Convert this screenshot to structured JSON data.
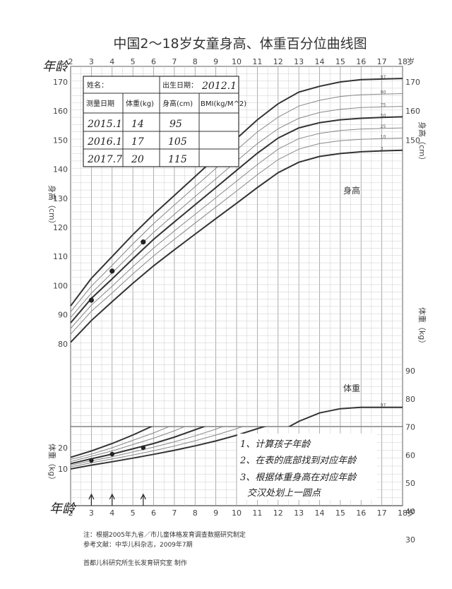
{
  "chart_data": {
    "type": "line",
    "title": "中国2～18岁女童身高、体重百分位曲线图",
    "xlim": [
      2,
      18
    ],
    "x_ticks": [
      "2",
      "3",
      "4",
      "5",
      "6",
      "7",
      "8",
      "9",
      "10",
      "11",
      "12",
      "13",
      "14",
      "15",
      "16",
      "17",
      "18"
    ],
    "x_unit": "岁",
    "height_axis": {
      "label": "身高（cm）",
      "ylim": [
        75,
        180
      ],
      "ticks": [
        80,
        90,
        100,
        110,
        120,
        130,
        140,
        150,
        160,
        170
      ]
    },
    "weight_axis": {
      "label": "体重（kg）",
      "ylim": [
        5,
        100
      ],
      "ticks": [
        10,
        20,
        30,
        40,
        50,
        60,
        70,
        80,
        90
      ],
      "lower_ticks": [
        10,
        20
      ]
    },
    "height_series": [
      {
        "name": "97",
        "x": [
          2,
          3,
          4,
          5,
          6,
          7,
          8,
          9,
          10,
          11,
          12,
          13,
          14,
          15,
          16,
          17,
          18
        ],
        "values": [
          93,
          102.5,
          110,
          117.5,
          124.5,
          131,
          137.5,
          144,
          150.5,
          157,
          162.5,
          166.5,
          168.5,
          170,
          170.8,
          171,
          171.2
        ]
      },
      {
        "name": "90",
        "x": [
          2,
          3,
          4,
          5,
          6,
          7,
          8,
          9,
          10,
          11,
          12,
          13,
          14,
          15,
          16,
          17,
          18
        ],
        "values": [
          91,
          99.8,
          107,
          114.3,
          121.3,
          127.7,
          134,
          140.3,
          146.6,
          152.8,
          157.9,
          161.7,
          163.7,
          165,
          165.6,
          165.8,
          166
        ]
      },
      {
        "name": "75",
        "x": [
          2,
          3,
          4,
          5,
          6,
          7,
          8,
          9,
          10,
          11,
          12,
          13,
          14,
          15,
          16,
          17,
          18
        ],
        "values": [
          89,
          97.4,
          104.4,
          111.4,
          118.3,
          124.5,
          130.6,
          136.7,
          142.8,
          148.8,
          153.9,
          157.5,
          159.5,
          160.6,
          161.2,
          161.4,
          161.6
        ]
      },
      {
        "name": "50",
        "x": [
          2,
          3,
          4,
          5,
          6,
          7,
          8,
          9,
          10,
          11,
          12,
          13,
          14,
          15,
          16,
          17,
          18
        ],
        "values": [
          87.2,
          95.6,
          102.3,
          109.2,
          115.9,
          121.9,
          127.8,
          133.7,
          139.6,
          145.5,
          150.7,
          154.2,
          156,
          157,
          157.5,
          157.8,
          158
        ]
      },
      {
        "name": "25",
        "x": [
          2,
          3,
          4,
          5,
          6,
          7,
          8,
          9,
          10,
          11,
          12,
          13,
          14,
          15,
          16,
          17,
          18
        ],
        "values": [
          85.3,
          93.3,
          99.8,
          106.5,
          112.9,
          118.8,
          124.5,
          130.2,
          135.9,
          141.6,
          146.9,
          150.5,
          152.3,
          153.3,
          153.8,
          154,
          154.2
        ]
      },
      {
        "name": "10",
        "x": [
          2,
          3,
          4,
          5,
          6,
          7,
          8,
          9,
          10,
          11,
          12,
          13,
          14,
          15,
          16,
          17,
          18
        ],
        "values": [
          83.3,
          91.2,
          97.5,
          104,
          110.2,
          115.9,
          121.5,
          127,
          132.5,
          138.1,
          143.3,
          146.9,
          148.8,
          149.8,
          150.3,
          150.5,
          150.7
        ]
      },
      {
        "name": "3",
        "x": [
          2,
          3,
          4,
          5,
          6,
          7,
          8,
          9,
          10,
          11,
          12,
          13,
          14,
          15,
          16,
          17,
          18
        ],
        "values": [
          80.5,
          88,
          94.5,
          100.8,
          106.8,
          112.3,
          117.7,
          123,
          128.3,
          133.7,
          138.8,
          142.4,
          144.4,
          145.4,
          146,
          146.3,
          146.5
        ]
      }
    ],
    "weight_series": [
      {
        "name": "97",
        "x": [
          2,
          3,
          4,
          5,
          6,
          7,
          8,
          9,
          10,
          11,
          12,
          13,
          14,
          15,
          16,
          17,
          18
        ],
        "values": [
          15.5,
          18.5,
          22,
          26,
          30.5,
          36,
          42,
          49,
          56,
          62.5,
          68,
          72,
          75,
          76.5,
          77,
          77,
          77
        ]
      },
      {
        "name": "90",
        "x": [
          2,
          3,
          4,
          5,
          6,
          7,
          8,
          9,
          10,
          11,
          12,
          13,
          14,
          15,
          16,
          17,
          18
        ],
        "values": [
          14.5,
          17,
          20,
          23.5,
          27,
          31,
          35.5,
          41,
          47,
          53,
          58,
          61.5,
          63.5,
          64.5,
          65,
          65.2,
          65.5
        ]
      },
      {
        "name": "75",
        "x": [
          2,
          3,
          4,
          5,
          6,
          7,
          8,
          9,
          10,
          11,
          12,
          13,
          14,
          15,
          16,
          17,
          18
        ],
        "values": [
          13.5,
          16,
          18.5,
          21.5,
          24.5,
          28,
          32,
          36.5,
          41.5,
          47,
          51.5,
          55,
          57,
          58,
          58.5,
          58.8,
          59
        ]
      },
      {
        "name": "50",
        "x": [
          2,
          3,
          4,
          5,
          6,
          7,
          8,
          9,
          10,
          11,
          12,
          13,
          14,
          15,
          16,
          17,
          18
        ],
        "values": [
          12.5,
          14.8,
          17,
          19.5,
          22,
          25,
          28.5,
          32,
          36,
          40.5,
          44.5,
          47.5,
          49.5,
          50.5,
          51,
          51.2,
          51.4
        ]
      },
      {
        "name": "25",
        "x": [
          2,
          3,
          4,
          5,
          6,
          7,
          8,
          9,
          10,
          11,
          12,
          13,
          14,
          15,
          16,
          17,
          18
        ],
        "values": [
          11.8,
          13.8,
          15.8,
          18,
          20.3,
          22.8,
          25.6,
          28.8,
          32.3,
          36.2,
          39.8,
          42.6,
          44.3,
          45.2,
          45.6,
          45.8,
          46
        ]
      },
      {
        "name": "10",
        "x": [
          2,
          3,
          4,
          5,
          6,
          7,
          8,
          9,
          10,
          11,
          12,
          13,
          14,
          15,
          16,
          17,
          18
        ],
        "values": [
          11,
          12.9,
          14.7,
          16.6,
          18.6,
          20.8,
          23.3,
          26,
          29,
          32.4,
          35.7,
          38.3,
          40,
          40.9,
          41.3,
          41.5,
          41.7
        ]
      },
      {
        "name": "3",
        "x": [
          2,
          3,
          4,
          5,
          6,
          7,
          8,
          9,
          10,
          11,
          12,
          13,
          14,
          15,
          16,
          17,
          18
        ],
        "values": [
          10,
          11.8,
          13.4,
          15.1,
          16.9,
          18.8,
          20.9,
          23.2,
          25.9,
          29,
          32,
          34.6,
          36.3,
          37.2,
          37.7,
          37.9,
          38
        ]
      }
    ],
    "height_points": [
      [
        3.0,
        95
      ],
      [
        4.0,
        105
      ],
      [
        5.5,
        115
      ]
    ],
    "weight_points": [
      [
        3.0,
        14
      ],
      [
        4.0,
        17
      ],
      [
        5.5,
        20
      ]
    ],
    "curve_labels": {
      "height": "身高",
      "weight": "体重"
    }
  },
  "record_table": {
    "name_label": "姓名：",
    "dob_label": "出生日期：",
    "dob_value": "2012.1",
    "headers": [
      "测量日期",
      "体重(kg)",
      "身高(cm)",
      "BMI(kg/M^2)"
    ],
    "rows": [
      [
        "2015.1",
        "14",
        "95",
        ""
      ],
      [
        "2016.1",
        "17",
        "105",
        ""
      ],
      [
        "2017.7",
        "20",
        "115",
        ""
      ]
    ]
  },
  "annotations": {
    "age_top": "年龄",
    "age_bottom": "年龄",
    "note_1": "1、计算孩子年龄",
    "note_2": "2、在表的底部找到对应年龄",
    "note_3": "3、根据体重身高在对应年龄",
    "note_4": "交汉处划上一圆点"
  },
  "footnotes": {
    "note": "注：根据2005年九省／市儿童体格发育调查数据研究制定",
    "reference": "参考文献：中华儿科杂志，2009年7期",
    "producer": "首都儿科研究所生长发育研究室  制作"
  }
}
